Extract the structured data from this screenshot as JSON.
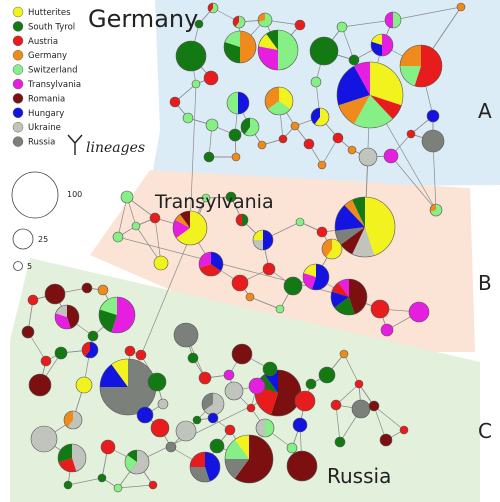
{
  "regions": [
    {
      "key": "A",
      "title": "Germany",
      "letter": "A"
    },
    {
      "key": "B",
      "title": "Transylvania",
      "letter": "B"
    },
    {
      "key": "C",
      "title": "Russia",
      "letter": "C"
    }
  ],
  "legend": {
    "items": [
      {
        "label": "Hutterites",
        "color": "#f2f21e"
      },
      {
        "label": "South Tyrol",
        "color": "#137a13"
      },
      {
        "label": "Austria",
        "color": "#e81c1c"
      },
      {
        "label": "Germany",
        "color": "#ef8a1d"
      },
      {
        "label": "Switzerland",
        "color": "#86ef86"
      },
      {
        "label": "Transylvania",
        "color": "#e61ee0"
      },
      {
        "label": "Romania",
        "color": "#7c0f0f"
      },
      {
        "label": "Hungary",
        "color": "#1414e0"
      },
      {
        "label": "Ukraine",
        "color": "#c0c4bd"
      },
      {
        "label": "Russia",
        "color": "#7c807b"
      }
    ],
    "lineage_label": "lineages"
  },
  "size_scale": [
    {
      "label": "100",
      "value": 100
    },
    {
      "label": "25",
      "value": 25
    },
    {
      "label": "5",
      "value": 5
    }
  ]
}
